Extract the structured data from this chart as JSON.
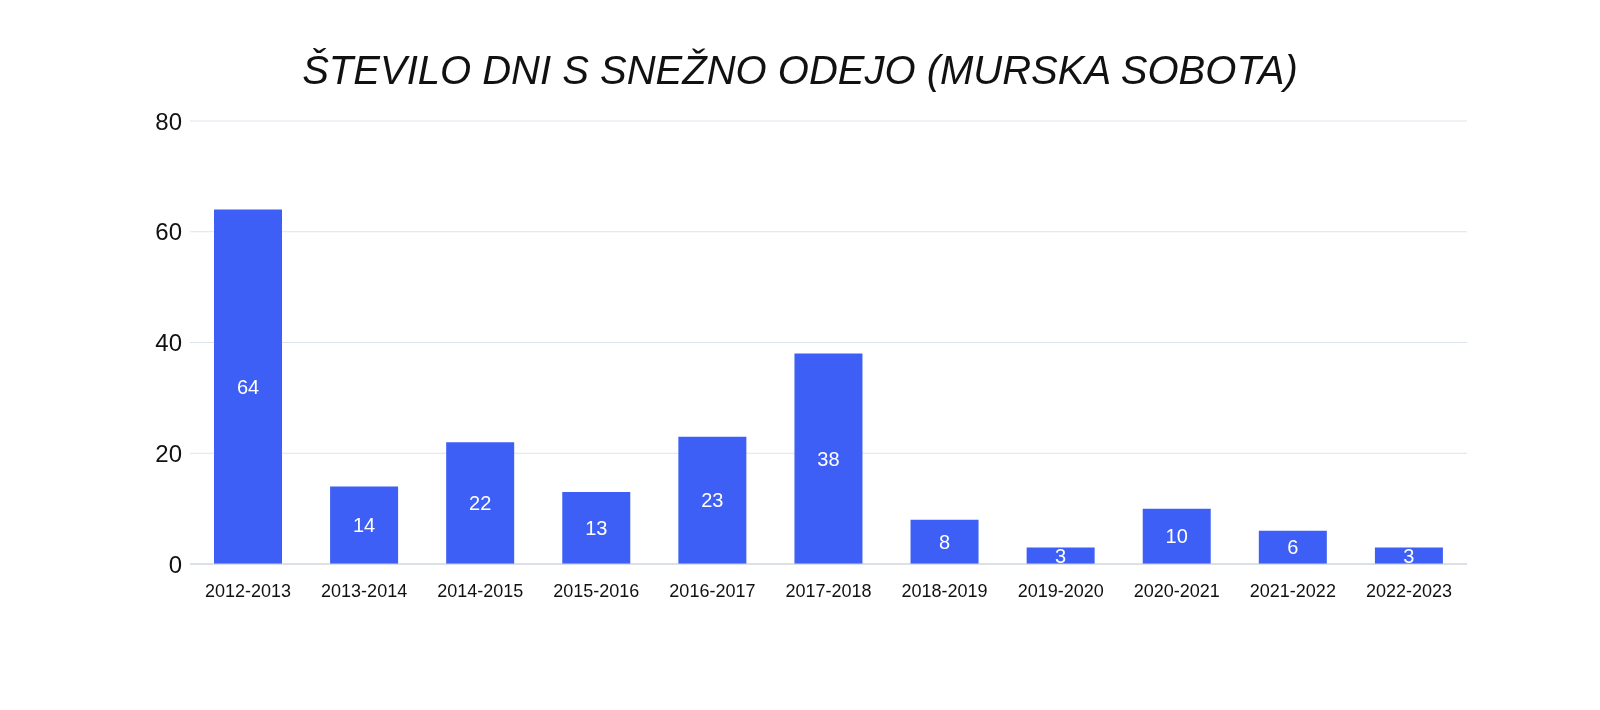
{
  "chart_data": {
    "type": "bar",
    "title": "ŠTEVILO DNI S SNEŽNO ODEJO (MURSKA SOBOTA)",
    "categories": [
      "2012-2013",
      "2013-2014",
      "2014-2015",
      "2015-2016",
      "2016-2017",
      "2017-2018",
      "2018-2019",
      "2019-2020",
      "2020-2021",
      "2021-2022",
      "2022-2023"
    ],
    "values": [
      64,
      14,
      22,
      13,
      23,
      38,
      8,
      3,
      10,
      6,
      3
    ],
    "color": "#3d5ff5",
    "ylim": [
      0,
      80
    ],
    "yticks": [
      0,
      20,
      40,
      60,
      80
    ],
    "grid": "y",
    "data_labels": true
  }
}
